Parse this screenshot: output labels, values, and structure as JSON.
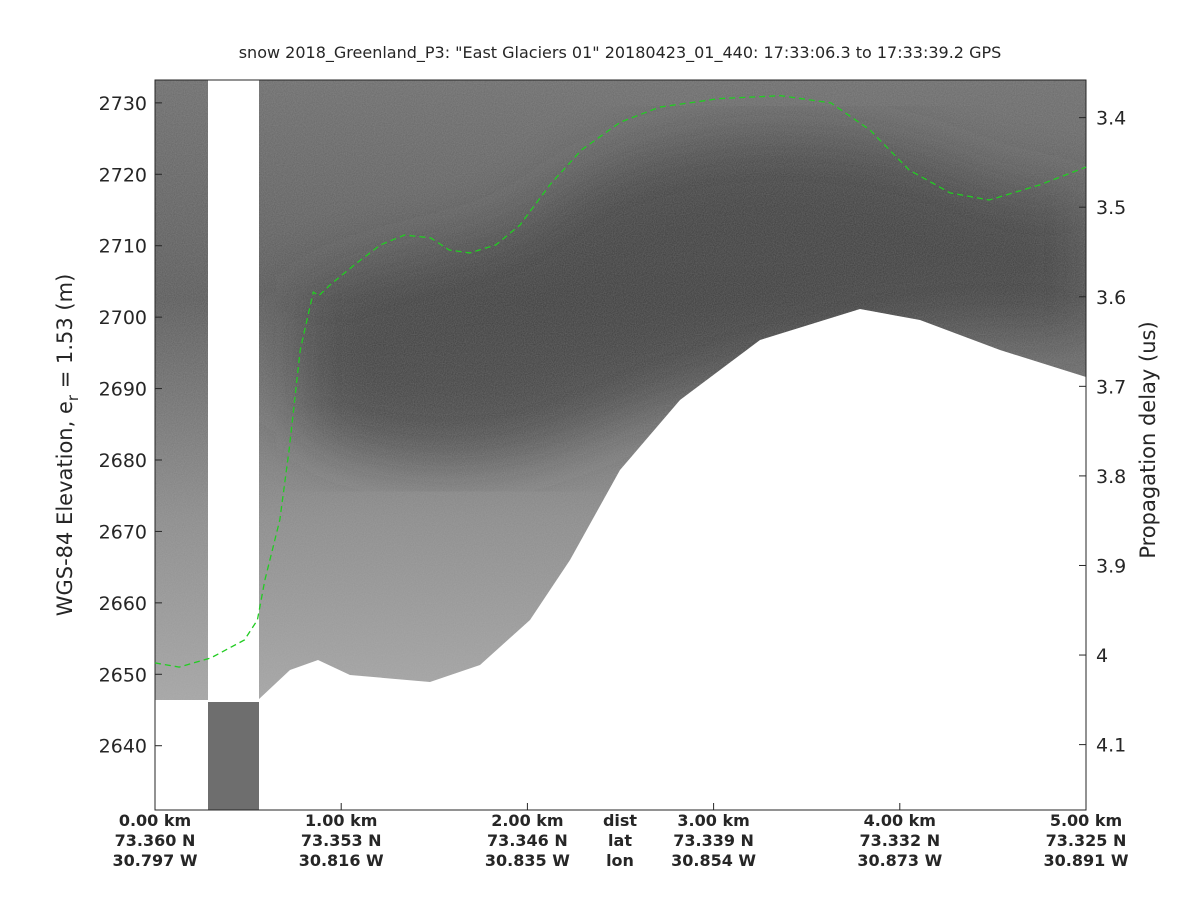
{
  "chart_data": {
    "type": "echogram",
    "title": "snow 2018_Greenland_P3: \"East Glaciers 01\"  20180423_01_440: 17:33:06.3 to 17:33:39.2 GPS",
    "ylabel": {
      "main": "WGS-84 Elevation, e",
      "subscript": "r",
      "suffix": " = 1.53 (m)"
    },
    "y2label": "Propagation delay (us)",
    "xlim": [
      0,
      5
    ],
    "xticks": [
      {
        "value": 0,
        "label": "0.00 km"
      },
      {
        "value": 1,
        "label": "1.00 km"
      },
      {
        "value": 2,
        "label": "2.00 km"
      },
      {
        "value": 3,
        "label": "3.00 km"
      },
      {
        "value": 4,
        "label": "4.00 km"
      },
      {
        "value": 5,
        "label": "5.00 km"
      }
    ],
    "lat_labels": [
      "73.360 N",
      "73.353 N",
      "73.346 N",
      "73.339 N",
      "73.332 N",
      "73.325 N"
    ],
    "lon_labels": [
      "30.797 W",
      "30.816 W",
      "30.835 W",
      "30.854 W",
      "30.873 W",
      "30.891 W"
    ],
    "row_labels": [
      "dist",
      "lat",
      "lon"
    ],
    "ylim": [
      2631,
      2733.2
    ],
    "yticks": [
      2640,
      2650,
      2660,
      2670,
      2680,
      2690,
      2700,
      2710,
      2720,
      2730
    ],
    "y2lim": [
      4.173,
      3.358
    ],
    "y2ticks": [
      3.4,
      3.5,
      3.6,
      3.7,
      3.8,
      3.9,
      4,
      4.1
    ],
    "series": [
      {
        "color": "#22cc22",
        "x": [
          0,
          0.13,
          0.3,
          0.48,
          0.55,
          0.59,
          0.67,
          0.72,
          0.78,
          0.85,
          0.88,
          0.94,
          1.07,
          1.21,
          1.34,
          1.48,
          1.58,
          1.69,
          1.83,
          1.96,
          2.12,
          2.29,
          2.5,
          2.71,
          3.03,
          3.36,
          3.63,
          3.84,
          4.05,
          4.27,
          4.48,
          4.75,
          5
        ],
        "values": [
          2651.6,
          2651.0,
          2652.3,
          2654.8,
          2657.6,
          2663.2,
          2671.6,
          2681.4,
          2695.4,
          2703.5,
          2703.0,
          2704.5,
          2707.3,
          2710.1,
          2711.5,
          2711.1,
          2709.4,
          2709.0,
          2710.1,
          2712.9,
          2718.5,
          2723.4,
          2727.3,
          2729.4,
          2730.6,
          2731.0,
          2730.0,
          2726.2,
          2720.6,
          2717.4,
          2716.4,
          2718.5,
          2721.0
        ]
      }
    ]
  }
}
